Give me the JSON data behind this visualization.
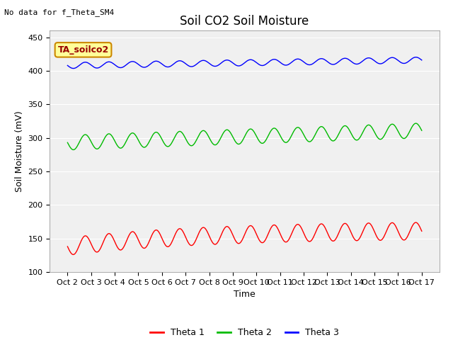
{
  "title": "Soil CO2 Soil Moisture",
  "no_data_text": "No data for f_Theta_SM4",
  "xlabel": "Time",
  "ylabel": "Soil Moisture (mV)",
  "ylim": [
    100,
    460
  ],
  "yticks": [
    100,
    150,
    200,
    250,
    300,
    350,
    400,
    450
  ],
  "x_labels": [
    "Oct 2",
    "Oct 3",
    "Oct 4",
    "Oct 5",
    "Oct 6",
    "Oct 7",
    "Oct 8",
    "Oct 9",
    "Oct 10",
    "Oct 11",
    "Oct 12",
    "Oct 13",
    "Oct 14",
    "Oct 15",
    "Oct 16",
    "Oct 17"
  ],
  "annotation_box": "TA_soilco2",
  "annotation_box_color": "#ffff99",
  "annotation_box_edgecolor": "#cc8800",
  "annotation_text_color": "#990000",
  "legend_labels": [
    "Theta 1",
    "Theta 2",
    "Theta 3"
  ],
  "legend_colors": [
    "#ff0000",
    "#00bb00",
    "#0000ff"
  ],
  "bg_color": "#e8e8e8",
  "plot_bg": "#f0f0f0",
  "title_fontsize": 12,
  "axis_label_fontsize": 9,
  "tick_fontsize": 8
}
